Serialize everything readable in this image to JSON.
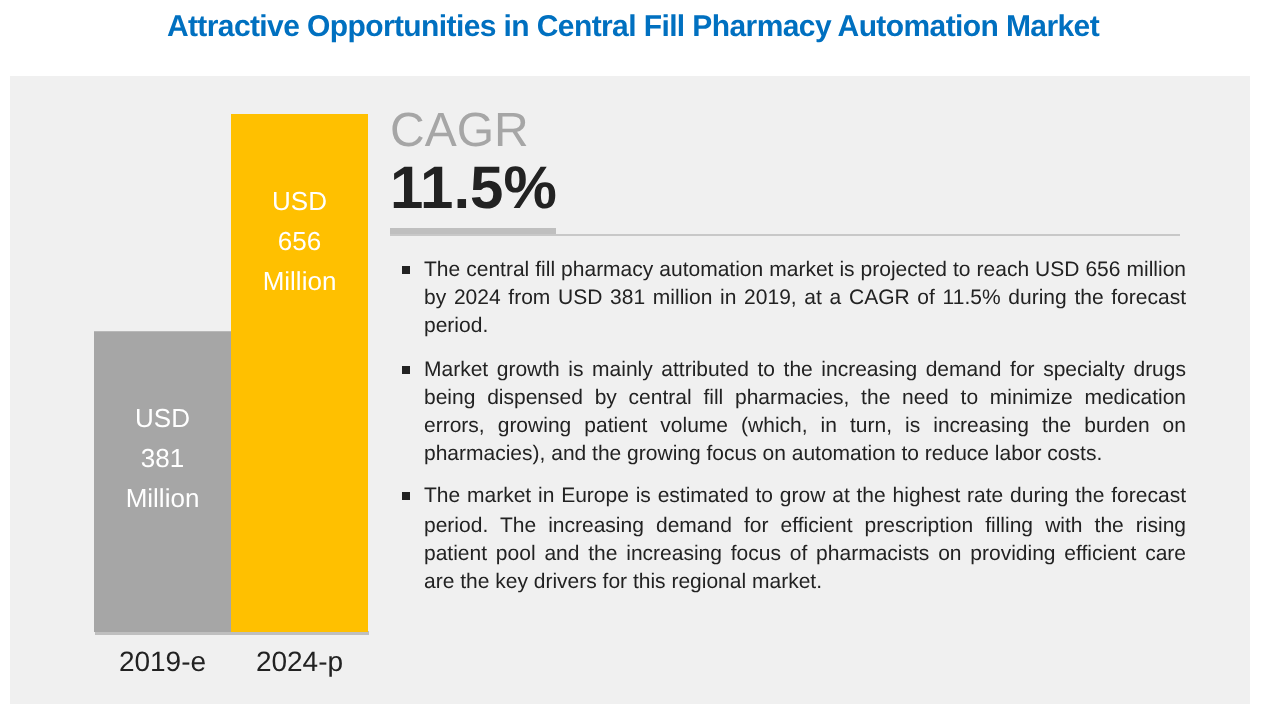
{
  "chart_data": {
    "type": "bar",
    "title": "Attractive Opportunities in Central Fill Pharmacy Automation Market",
    "categories": [
      "2019-e",
      "2024-p"
    ],
    "values": [
      381,
      656
    ],
    "colors": [
      "#a6a6a6",
      "#ffc000"
    ],
    "value_labels": [
      "USD 381 Million",
      "USD 656 Million"
    ],
    "annotations": [
      "CAGR",
      "11.5%",
      "The central fill pharmacy automation market is projected to reach USD 656 million by 2024 from USD 381 million in 2019, at a CAGR of 11.5% during the forecast period.",
      "Market growth is mainly attributed to the increasing demand for specialty drugs being dispensed by central fill pharmacies, the need to minimize medication errors, growing patient volume (which, in turn, is increasing the burden on pharmacies), and the growing focus on automation to reduce labor costs.",
      "The market in Europe is estimated to grow at the highest rate during the forecast period. The increasing demand for efficient prescription filling with the rising patient pool and the increasing focus of pharmacists on providing efficient care are the key drivers for this regional market."
    ]
  }
}
